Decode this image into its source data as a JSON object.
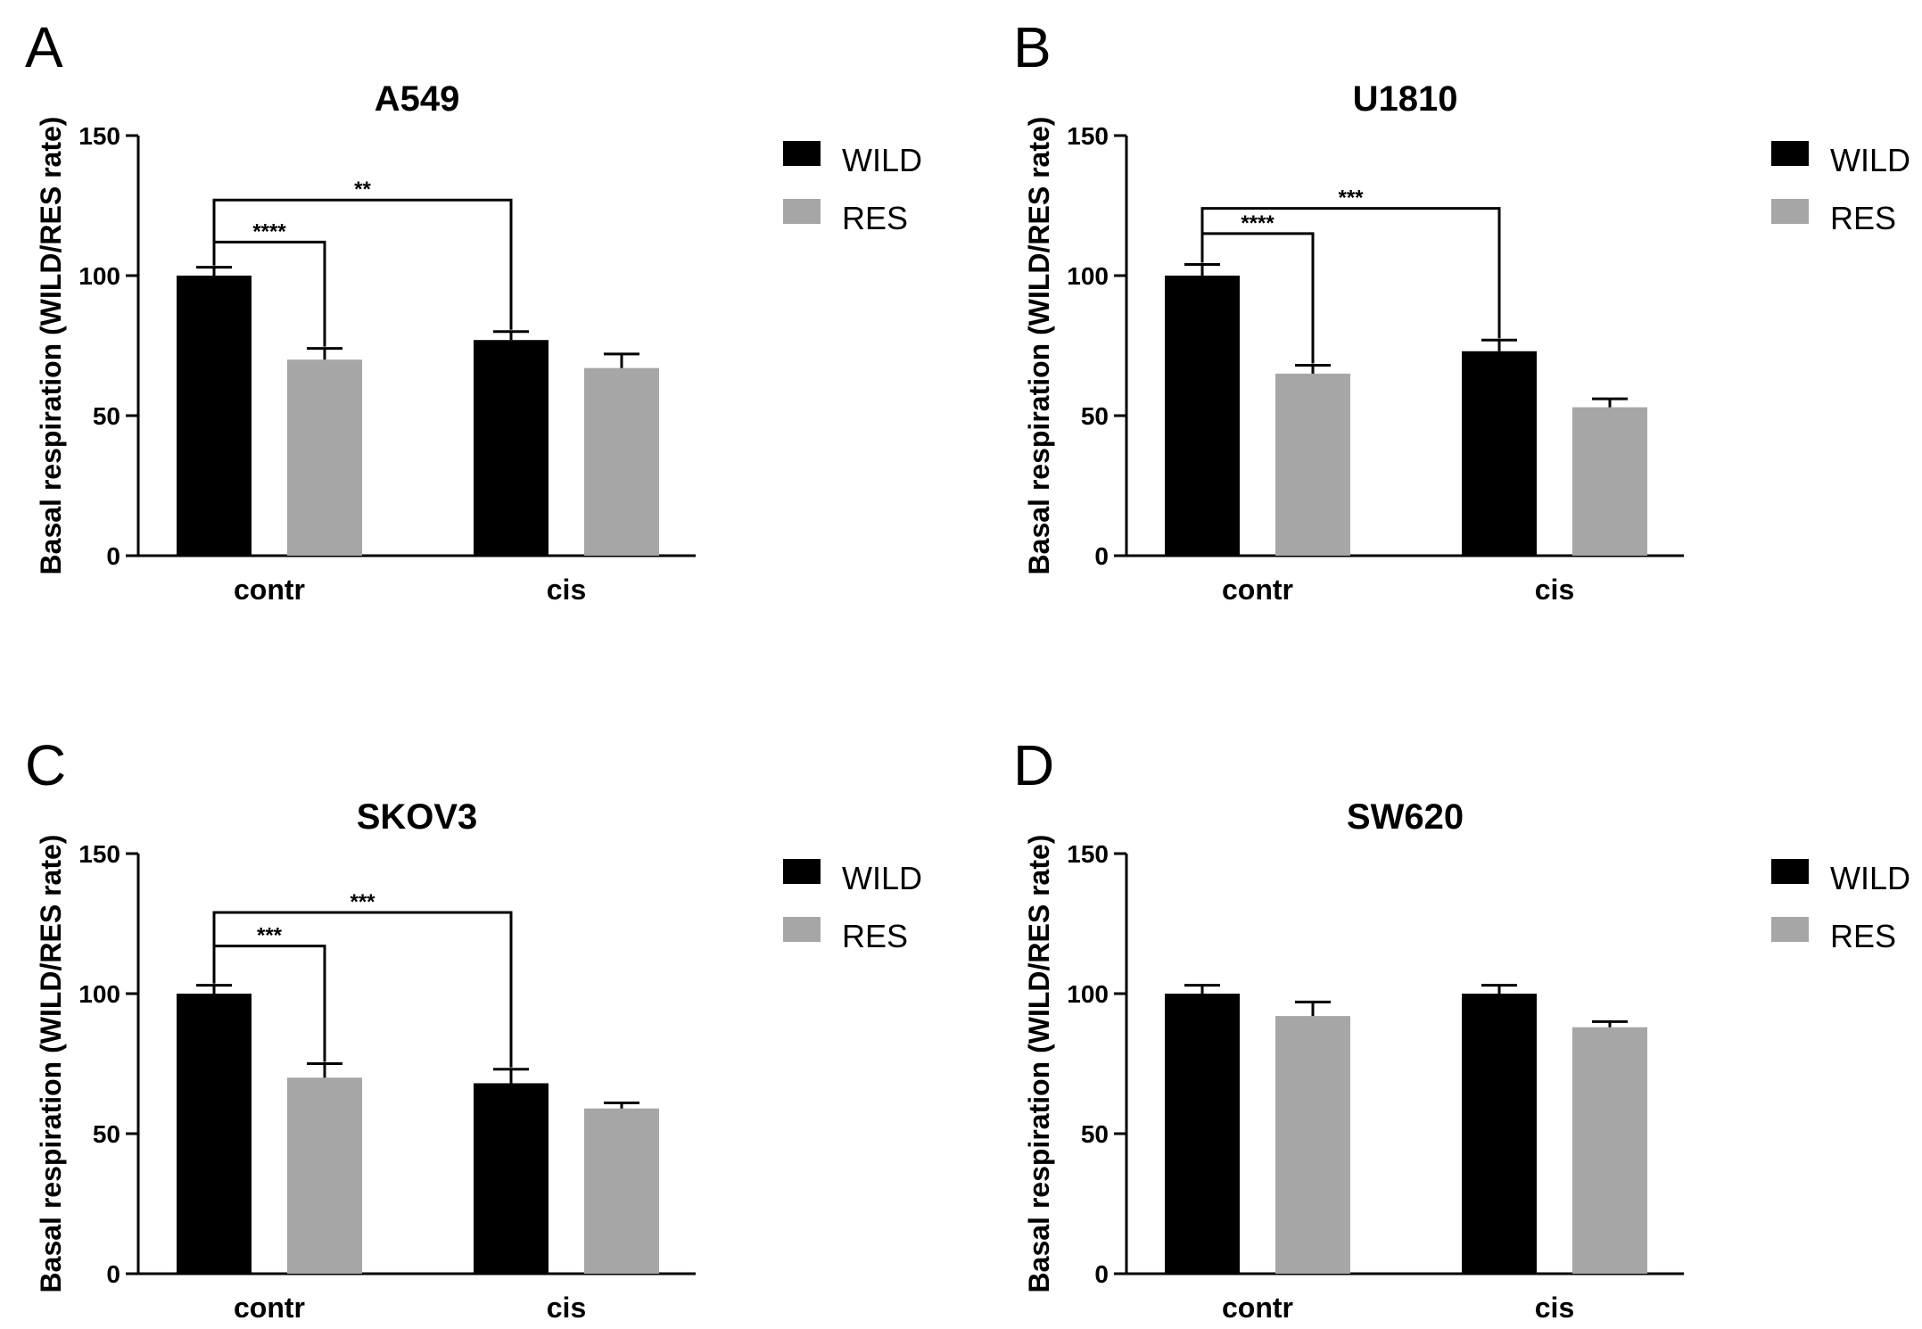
{
  "chart_data": [
    {
      "letter": "A",
      "type": "bar",
      "title": "A549",
      "ylabel": "Basal respiration (WILD/RES rate)",
      "xlabel": "",
      "ylim": [
        0,
        150
      ],
      "yticks": [
        0,
        50,
        100,
        150
      ],
      "categories": [
        "contr",
        "cis"
      ],
      "series": [
        {
          "name": "WILD",
          "color": "#000000",
          "values": [
            100,
            77
          ],
          "errors": [
            3,
            3
          ]
        },
        {
          "name": "RES",
          "color": "#a6a6a6",
          "values": [
            70,
            67
          ],
          "errors": [
            4,
            5
          ]
        }
      ],
      "legend_position": "right",
      "significance": [
        {
          "label": "****",
          "from": [
            0,
            0
          ],
          "to": [
            0,
            1
          ],
          "level": 112
        },
        {
          "label": "**",
          "from": [
            0,
            0
          ],
          "to": [
            1,
            0
          ],
          "level": 127
        }
      ]
    },
    {
      "letter": "B",
      "type": "bar",
      "title": "U1810",
      "ylabel": "Basal respiration (WILD/RES rate)",
      "xlabel": "",
      "ylim": [
        0,
        150
      ],
      "yticks": [
        0,
        50,
        100,
        150
      ],
      "categories": [
        "contr",
        "cis"
      ],
      "series": [
        {
          "name": "WILD",
          "color": "#000000",
          "values": [
            100,
            73
          ],
          "errors": [
            4,
            4
          ]
        },
        {
          "name": "RES",
          "color": "#a6a6a6",
          "values": [
            65,
            53
          ],
          "errors": [
            3,
            3
          ]
        }
      ],
      "legend_position": "right",
      "significance": [
        {
          "label": "****",
          "from": [
            0,
            0
          ],
          "to": [
            0,
            1
          ],
          "level": 115
        },
        {
          "label": "***",
          "from": [
            0,
            0
          ],
          "to": [
            1,
            0
          ],
          "level": 124
        }
      ]
    },
    {
      "letter": "C",
      "type": "bar",
      "title": "SKOV3",
      "ylabel": "Basal respiration (WILD/RES rate)",
      "xlabel": "",
      "ylim": [
        0,
        150
      ],
      "yticks": [
        0,
        50,
        100,
        150
      ],
      "categories": [
        "contr",
        "cis"
      ],
      "series": [
        {
          "name": "WILD",
          "color": "#000000",
          "values": [
            100,
            68
          ],
          "errors": [
            3,
            5
          ]
        },
        {
          "name": "RES",
          "color": "#a6a6a6",
          "values": [
            70,
            59
          ],
          "errors": [
            5,
            2
          ]
        }
      ],
      "legend_position": "right",
      "significance": [
        {
          "label": "***",
          "from": [
            0,
            0
          ],
          "to": [
            0,
            1
          ],
          "level": 117
        },
        {
          "label": "***",
          "from": [
            0,
            0
          ],
          "to": [
            1,
            0
          ],
          "level": 129
        }
      ]
    },
    {
      "letter": "D",
      "type": "bar",
      "title": "SW620",
      "ylabel": "Basal respiration (WILD/RES rate)",
      "xlabel": "",
      "ylim": [
        0,
        150
      ],
      "yticks": [
        0,
        50,
        100,
        150
      ],
      "categories": [
        "contr",
        "cis"
      ],
      "series": [
        {
          "name": "WILD",
          "color": "#000000",
          "values": [
            100,
            100
          ],
          "errors": [
            3,
            3
          ]
        },
        {
          "name": "RES",
          "color": "#a6a6a6",
          "values": [
            92,
            88
          ],
          "errors": [
            5,
            2
          ]
        }
      ],
      "legend_position": "right",
      "significance": []
    }
  ]
}
